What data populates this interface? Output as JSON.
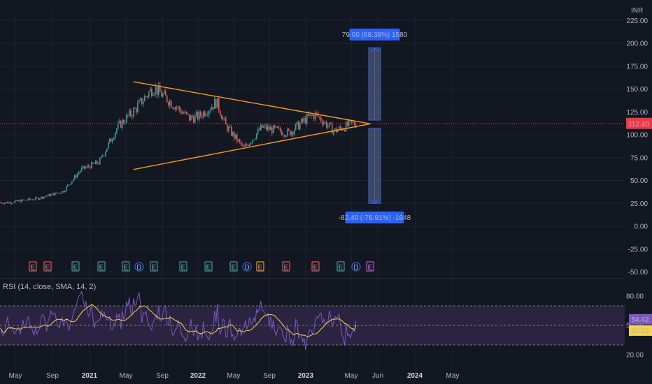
{
  "currency": "INR",
  "colors": {
    "background": "#131722",
    "grid": "#1f2330",
    "up": "#26a69a",
    "down": "#ef5350",
    "triangle": "#f59c1a",
    "current_price_line": "#f23645",
    "measure_fill": "#7b8091",
    "measure_box": "#2962ff",
    "rsi_line": "#7e57c2",
    "rsi_sma": "#f5d547",
    "rsi_band": "#2a2440",
    "event_earnings_up": "#26a69a",
    "event_earnings_down": "#ef5350",
    "event_dividend": "#2962ff",
    "event_split": "#ff9800",
    "event_future": "#e040fb"
  },
  "chart_data": [
    {
      "type": "candlestick",
      "y_axis": {
        "label": "INR",
        "ticks": [
          -50,
          -25,
          0,
          25,
          50,
          75,
          100,
          125,
          150,
          175,
          200,
          225
        ],
        "range": [
          -55,
          230
        ]
      },
      "x_axis": {
        "ticks": [
          "May",
          "Sep",
          "2021",
          "May",
          "Sep",
          "2022",
          "May",
          "Sep",
          "2023",
          "May",
          "Jun",
          "2024",
          "May"
        ]
      },
      "price_anchors": [
        {
          "t": "2020-04",
          "price": 26
        },
        {
          "t": "2020-07",
          "price": 30
        },
        {
          "t": "2020-10",
          "price": 38
        },
        {
          "t": "2020-12",
          "price": 62
        },
        {
          "t": "2021-02",
          "price": 70
        },
        {
          "t": "2021-04",
          "price": 108
        },
        {
          "t": "2021-06",
          "price": 128
        },
        {
          "t": "2021-08",
          "price": 152
        },
        {
          "t": "2021-10",
          "price": 135
        },
        {
          "t": "2021-12",
          "price": 118
        },
        {
          "t": "2022-01",
          "price": 120
        },
        {
          "t": "2022-03",
          "price": 136
        },
        {
          "t": "2022-04",
          "price": 110
        },
        {
          "t": "2022-06",
          "price": 85
        },
        {
          "t": "2022-08",
          "price": 108
        },
        {
          "t": "2022-11",
          "price": 102
        },
        {
          "t": "2023-01",
          "price": 118
        },
        {
          "t": "2023-02",
          "price": 122
        },
        {
          "t": "2023-04",
          "price": 104
        },
        {
          "t": "2023-06",
          "price": 112
        }
      ],
      "last_price": {
        "value": 112.4,
        "label": "112.40"
      },
      "triangle": {
        "upper": [
          [
            "2021-06",
            158
          ],
          [
            "2023-07",
            112
          ]
        ],
        "lower": [
          [
            "2021-06",
            62
          ],
          [
            "2023-07",
            112
          ]
        ]
      },
      "measurements": [
        {
          "label": "79.00 (68.38%) 1580",
          "from": 116,
          "to": 195,
          "t": "2023-06"
        },
        {
          "label": "-82.40 (-76.91%) -1648",
          "from": 107,
          "to": 25,
          "t": "2023-06"
        }
      ],
      "events": [
        "E",
        "E",
        "E",
        "E",
        "E",
        "E",
        "D",
        "E",
        "E",
        "E",
        "E",
        "D",
        "E",
        "E",
        "E",
        "E",
        "D",
        "E"
      ]
    },
    {
      "type": "line",
      "title": "RSI (14, close, SMA, 14, 2)",
      "y_axis": {
        "ticks": [
          20,
          50,
          80
        ],
        "range": [
          14,
          93
        ]
      },
      "band": [
        30,
        70
      ],
      "series": [
        {
          "name": "RSI",
          "last": 54.42,
          "label": "54.42"
        },
        {
          "name": "SMA",
          "last": 50.03,
          "label": "50.03"
        }
      ]
    }
  ]
}
